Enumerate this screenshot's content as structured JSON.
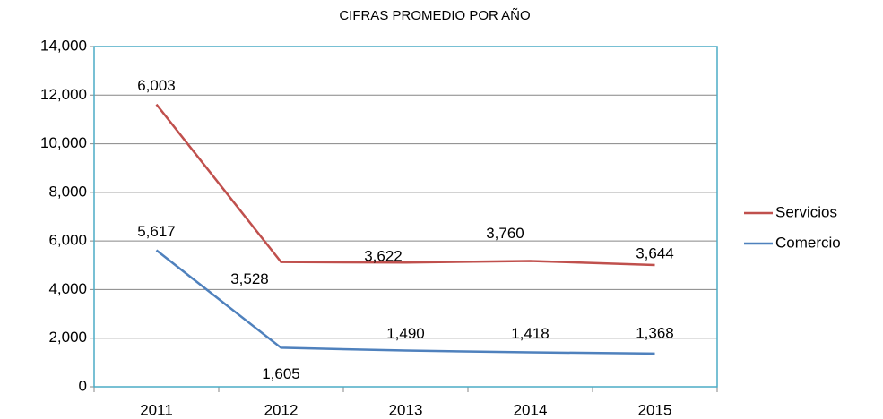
{
  "chart_data": {
    "type": "stacked_line",
    "title": "CIFRAS PROMEDIO POR AÑO",
    "categories": [
      "2011",
      "2012",
      "2013",
      "2014",
      "2015"
    ],
    "series": [
      {
        "name": "Comercio",
        "color": "#4f81bd",
        "values": [
          5617,
          1605,
          1490,
          1418,
          1368
        ],
        "value_labels": [
          "5,617",
          "1,605",
          "1,490",
          "1,418",
          "1,368"
        ]
      },
      {
        "name": "Servicios",
        "color": "#c0504d",
        "values": [
          6003,
          3528,
          3622,
          3760,
          3644
        ],
        "value_labels": [
          "6,003",
          "3,528",
          "3,622",
          "3,760",
          "3,644"
        ]
      }
    ],
    "stacked": true,
    "ylim": [
      0,
      14000
    ],
    "yticks": [
      0,
      {
        "value": 2000,
        "label": "2,000"
      },
      {
        "value": 4000,
        "label": "4,000"
      },
      {
        "value": 6000,
        "label": "6,000"
      },
      {
        "value": 8000,
        "label": "8,000"
      },
      {
        "value": 10000,
        "label": "10,000"
      },
      {
        "value": 12000,
        "label": "12,000"
      },
      {
        "value": 14000,
        "label": "14,000"
      }
    ],
    "grid": true,
    "legend": "right"
  }
}
